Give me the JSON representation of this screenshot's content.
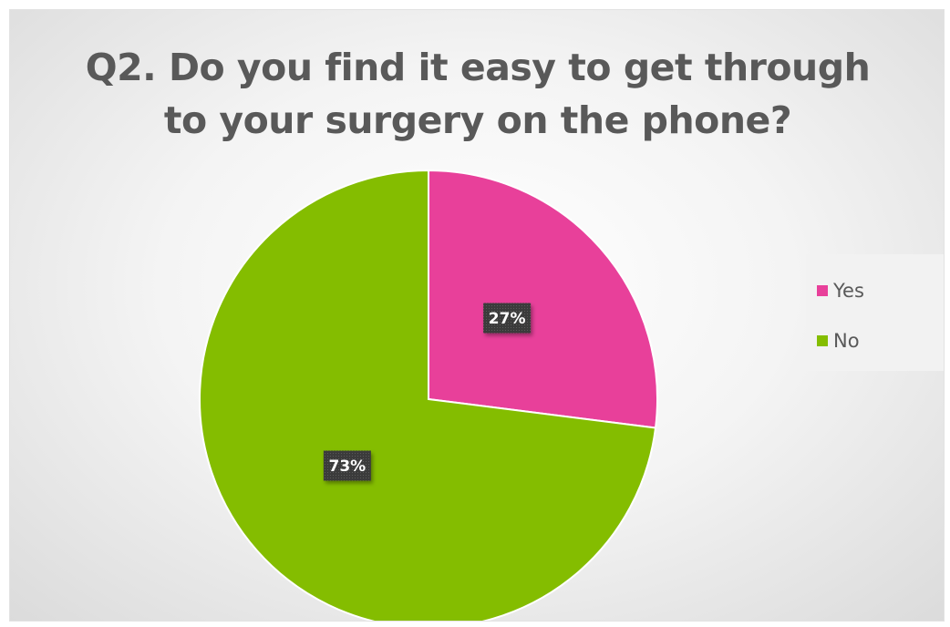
{
  "chart_data": {
    "type": "pie",
    "title_lines": [
      "Q2. Do you find it easy to get through",
      "to your surgery on the phone?"
    ],
    "categories": [
      "Yes",
      "No"
    ],
    "values": [
      27,
      73
    ],
    "data_labels": [
      "27%",
      "73%"
    ],
    "colors": [
      "#e8409a",
      "#84bd00"
    ],
    "legend_placement": "right"
  }
}
